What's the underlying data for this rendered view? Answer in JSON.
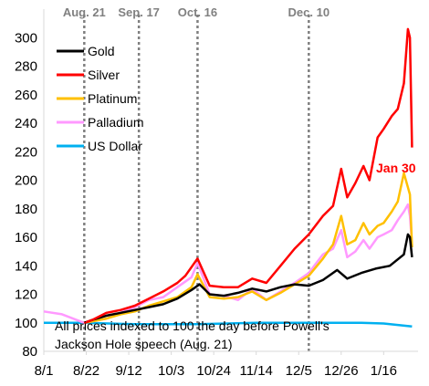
{
  "chart_data": {
    "type": "line",
    "title": "",
    "xlabel": "",
    "ylabel": "",
    "x_start_date": "2025-08-01",
    "x_end_date": "2026-02-02",
    "xticks": [
      "8/1",
      "8/22",
      "9/12",
      "10/3",
      "10/24",
      "11/14",
      "12/5",
      "12/26",
      "1/16"
    ],
    "ylim": [
      80,
      320
    ],
    "yticks": [
      80,
      100,
      120,
      140,
      160,
      180,
      200,
      220,
      240,
      260,
      280,
      300
    ],
    "grid": false,
    "legend_position": "top-left",
    "events": [
      {
        "label": "Aug. 21",
        "date": "2025-08-21"
      },
      {
        "label": "Sep. 17",
        "date": "2025-09-17"
      },
      {
        "label": "Oct. 16",
        "date": "2025-10-16"
      },
      {
        "label": "Dec. 10",
        "date": "2025-12-10"
      }
    ],
    "annotations": [
      {
        "text": "Jan 30",
        "color": "#ff0000"
      }
    ],
    "note": [
      "All prices indexed to 100 the day before Powell's",
      "Jackson Hole speech (Aug. 21)"
    ],
    "series": [
      {
        "name": "Gold",
        "color": "#000000",
        "points": [
          [
            "2025-08-21",
            100
          ],
          [
            "2025-08-25",
            102
          ],
          [
            "2025-09-01",
            105
          ],
          [
            "2025-09-08",
            107
          ],
          [
            "2025-09-15",
            109
          ],
          [
            "2025-09-22",
            111
          ],
          [
            "2025-09-29",
            113
          ],
          [
            "2025-10-06",
            117
          ],
          [
            "2025-10-13",
            123
          ],
          [
            "2025-10-17",
            127
          ],
          [
            "2025-10-22",
            120
          ],
          [
            "2025-10-29",
            119
          ],
          [
            "2025-11-05",
            121
          ],
          [
            "2025-11-12",
            124
          ],
          [
            "2025-11-19",
            122
          ],
          [
            "2025-11-26",
            125
          ],
          [
            "2025-12-03",
            127
          ],
          [
            "2025-12-10",
            126
          ],
          [
            "2025-12-17",
            130
          ],
          [
            "2025-12-24",
            137
          ],
          [
            "2025-12-29",
            131
          ],
          [
            "2026-01-05",
            135
          ],
          [
            "2026-01-12",
            138
          ],
          [
            "2026-01-19",
            140
          ],
          [
            "2026-01-26",
            148
          ],
          [
            "2026-01-28",
            162
          ],
          [
            "2026-01-29",
            160
          ],
          [
            "2026-01-30",
            146
          ]
        ]
      },
      {
        "name": "Silver",
        "color": "#ff0000",
        "points": [
          [
            "2025-08-21",
            100
          ],
          [
            "2025-08-25",
            102
          ],
          [
            "2025-09-01",
            107
          ],
          [
            "2025-09-08",
            109
          ],
          [
            "2025-09-15",
            112
          ],
          [
            "2025-09-22",
            117
          ],
          [
            "2025-09-29",
            122
          ],
          [
            "2025-10-06",
            128
          ],
          [
            "2025-10-10",
            133
          ],
          [
            "2025-10-16",
            145
          ],
          [
            "2025-10-22",
            126
          ],
          [
            "2025-10-29",
            125
          ],
          [
            "2025-11-05",
            125
          ],
          [
            "2025-11-12",
            131
          ],
          [
            "2025-11-19",
            128
          ],
          [
            "2025-11-26",
            140
          ],
          [
            "2025-12-03",
            152
          ],
          [
            "2025-12-10",
            162
          ],
          [
            "2025-12-17",
            175
          ],
          [
            "2025-12-22",
            182
          ],
          [
            "2025-12-26",
            208
          ],
          [
            "2025-12-29",
            188
          ],
          [
            "2026-01-02",
            198
          ],
          [
            "2026-01-06",
            210
          ],
          [
            "2026-01-09",
            200
          ],
          [
            "2026-01-13",
            230
          ],
          [
            "2026-01-16",
            236
          ],
          [
            "2026-01-20",
            245
          ],
          [
            "2026-01-23",
            250
          ],
          [
            "2026-01-26",
            268
          ],
          [
            "2026-01-28",
            306
          ],
          [
            "2026-01-29",
            300
          ],
          [
            "2026-01-30",
            223
          ]
        ]
      },
      {
        "name": "Platinum",
        "color": "#ffc000",
        "points": [
          [
            "2025-08-21",
            100
          ],
          [
            "2025-08-25",
            101
          ],
          [
            "2025-09-01",
            103
          ],
          [
            "2025-09-08",
            106
          ],
          [
            "2025-09-15",
            108
          ],
          [
            "2025-09-22",
            112
          ],
          [
            "2025-09-29",
            115
          ],
          [
            "2025-10-06",
            118
          ],
          [
            "2025-10-13",
            125
          ],
          [
            "2025-10-16",
            134
          ],
          [
            "2025-10-22",
            118
          ],
          [
            "2025-10-29",
            117
          ],
          [
            "2025-11-05",
            118
          ],
          [
            "2025-11-12",
            122
          ],
          [
            "2025-11-19",
            116
          ],
          [
            "2025-11-26",
            121
          ],
          [
            "2025-12-03",
            127
          ],
          [
            "2025-12-10",
            133
          ],
          [
            "2025-12-17",
            145
          ],
          [
            "2025-12-22",
            155
          ],
          [
            "2025-12-26",
            175
          ],
          [
            "2025-12-29",
            155
          ],
          [
            "2026-01-02",
            158
          ],
          [
            "2026-01-06",
            170
          ],
          [
            "2026-01-09",
            162
          ],
          [
            "2026-01-13",
            168
          ],
          [
            "2026-01-16",
            170
          ],
          [
            "2026-01-20",
            178
          ],
          [
            "2026-01-23",
            185
          ],
          [
            "2026-01-26",
            205
          ],
          [
            "2026-01-28",
            195
          ],
          [
            "2026-01-29",
            190
          ],
          [
            "2026-01-30",
            153
          ]
        ]
      },
      {
        "name": "Palladium",
        "color": "#ff99ff",
        "points": [
          [
            "2025-08-01",
            108
          ],
          [
            "2025-08-10",
            106
          ],
          [
            "2025-08-21",
            100
          ],
          [
            "2025-08-25",
            101
          ],
          [
            "2025-09-01",
            103
          ],
          [
            "2025-09-08",
            107
          ],
          [
            "2025-09-15",
            111
          ],
          [
            "2025-09-22",
            116
          ],
          [
            "2025-09-29",
            118
          ],
          [
            "2025-10-06",
            125
          ],
          [
            "2025-10-13",
            132
          ],
          [
            "2025-10-16",
            142
          ],
          [
            "2025-10-22",
            120
          ],
          [
            "2025-10-29",
            119
          ],
          [
            "2025-11-05",
            116
          ],
          [
            "2025-11-12",
            124
          ],
          [
            "2025-11-19",
            116
          ],
          [
            "2025-11-26",
            122
          ],
          [
            "2025-12-03",
            128
          ],
          [
            "2025-12-10",
            135
          ],
          [
            "2025-12-17",
            148
          ],
          [
            "2025-12-22",
            152
          ],
          [
            "2025-12-26",
            165
          ],
          [
            "2025-12-29",
            146
          ],
          [
            "2026-01-02",
            150
          ],
          [
            "2026-01-06",
            158
          ],
          [
            "2026-01-09",
            152
          ],
          [
            "2026-01-13",
            160
          ],
          [
            "2026-01-16",
            162
          ],
          [
            "2026-01-20",
            165
          ],
          [
            "2026-01-23",
            172
          ],
          [
            "2026-01-26",
            178
          ],
          [
            "2026-01-28",
            183
          ],
          [
            "2026-01-29",
            175
          ],
          [
            "2026-01-30",
            155
          ]
        ]
      },
      {
        "name": "US Dollar",
        "color": "#00b0f0",
        "points": [
          [
            "2025-08-01",
            100
          ],
          [
            "2025-08-21",
            100
          ],
          [
            "2025-09-15",
            99
          ],
          [
            "2025-10-16",
            99
          ],
          [
            "2025-11-14",
            100
          ],
          [
            "2025-12-10",
            100
          ],
          [
            "2026-01-05",
            100
          ],
          [
            "2026-01-16",
            99.5
          ],
          [
            "2026-01-23",
            98.5
          ],
          [
            "2026-01-30",
            97.5
          ]
        ]
      }
    ]
  }
}
